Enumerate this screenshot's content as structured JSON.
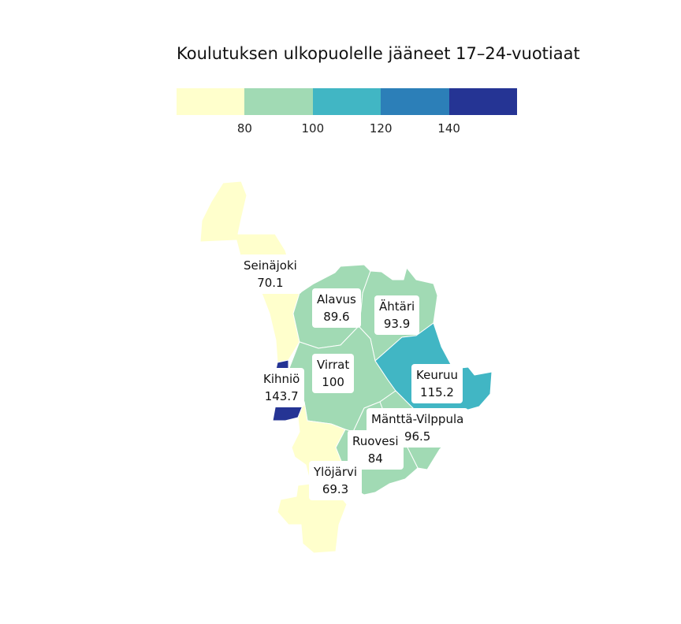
{
  "title": "Koulutuksen ulkopuolelle jääneet 17–24-vuotiaat",
  "legend": {
    "colors": [
      "#ffffcc",
      "#a1dab4",
      "#41b6c4",
      "#2c7fb8",
      "#253494"
    ],
    "ticks": [
      "80",
      "100",
      "120",
      "140"
    ]
  },
  "regions": [
    {
      "name": "Seinäjoki",
      "value": "70.1",
      "color": "#ffffcc"
    },
    {
      "name": "Alavus",
      "value": "89.6",
      "color": "#a1dab4"
    },
    {
      "name": "Ähtäri",
      "value": "93.9",
      "color": "#a1dab4"
    },
    {
      "name": "Virrat",
      "value": "100",
      "color": "#a1dab4"
    },
    {
      "name": "Kihniö",
      "value": "143.7",
      "color": "#253494"
    },
    {
      "name": "Keuruu",
      "value": "115.2",
      "color": "#41b6c4"
    },
    {
      "name": "Mänttä-Vilppula",
      "value": "96.5",
      "color": "#a1dab4"
    },
    {
      "name": "Ruovesi",
      "value": "84",
      "color": "#a1dab4"
    },
    {
      "name": "Ylöjärvi",
      "value": "69.3",
      "color": "#ffffcc"
    }
  ]
}
